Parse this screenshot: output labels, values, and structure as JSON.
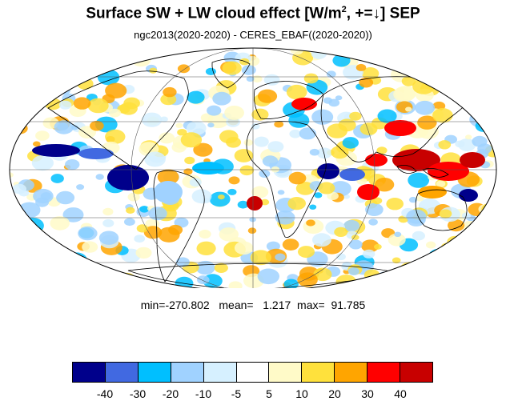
{
  "figure": {
    "title_main": "Surface SW + LW cloud effect [W/m",
    "title_sup": "2",
    "title_tail": ", +=↓]  SEP",
    "subtitle": "ngc2013(2020-2020) - CERES_EBAF((2020-2020))",
    "stats": "min=-270.802   mean=   1.217  max=  91.785"
  },
  "map": {
    "projection": "mollweide",
    "center_longitude": 0,
    "graticule": {
      "longitudes": [
        -180,
        -90,
        0,
        90,
        180
      ],
      "latitudes": [
        -60,
        -30,
        0,
        30,
        60
      ]
    },
    "coastlines": true
  },
  "colorbar": {
    "colors": [
      "#00008b",
      "#4169e1",
      "#00bfff",
      "#a0d2ff",
      "#d6f0ff",
      "#ffffff",
      "#fffac8",
      "#ffe13c",
      "#ffa500",
      "#ff0000",
      "#c80000"
    ],
    "ticks": [
      "-40",
      "-30",
      "-20",
      "-10",
      "-5",
      "5",
      "10",
      "20",
      "30",
      "40"
    ]
  }
}
